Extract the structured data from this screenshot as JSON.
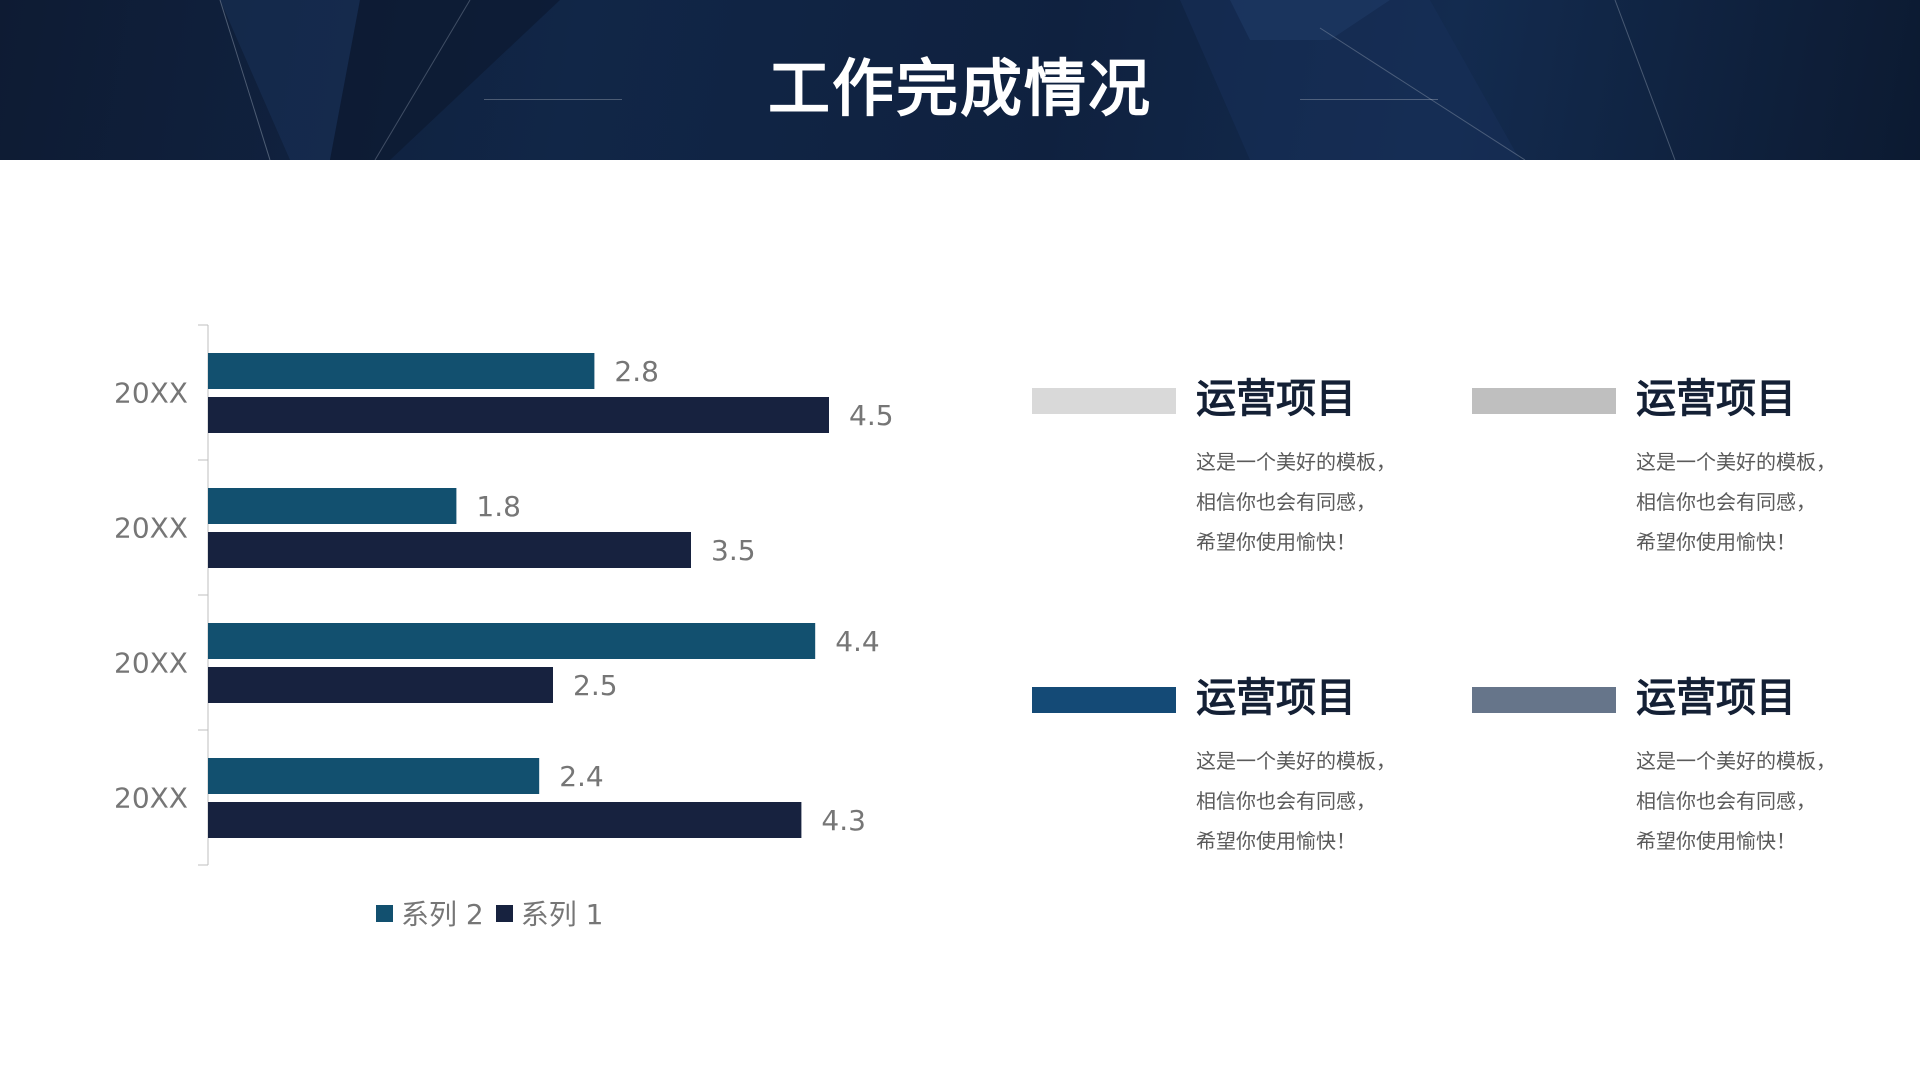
{
  "header": {
    "title": "工作完成情况"
  },
  "colors": {
    "series2": "#12506f",
    "series1": "#17223f",
    "axis": "#bfbfbf",
    "label": "#767676",
    "card_bar_1": "#d9d9d9",
    "card_bar_2": "#bfbfbf",
    "card_bar_3": "#144a76",
    "card_bar_4": "#66758a"
  },
  "chart_data": {
    "type": "bar",
    "orientation": "horizontal",
    "categories": [
      "20XX",
      "20XX",
      "20XX",
      "20XX"
    ],
    "series": [
      {
        "name": "系列 2",
        "values": [
          2.8,
          1.8,
          4.4,
          2.4
        ]
      },
      {
        "name": "系列 1",
        "values": [
          4.5,
          3.5,
          2.5,
          4.3
        ]
      }
    ],
    "xlim": [
      0,
      5
    ],
    "data_labels": true,
    "gridlines": false,
    "legend_position": "bottom"
  },
  "legend": {
    "items": [
      {
        "label": "系列 2"
      },
      {
        "label": "系列 1"
      }
    ]
  },
  "cards": [
    {
      "title": "运营项目",
      "lines": [
        "这是一个美好的模板，",
        "相信你也会有同感，",
        "希望你使用愉快！"
      ]
    },
    {
      "title": "运营项目",
      "lines": [
        "这是一个美好的模板，",
        "相信你也会有同感，",
        "希望你使用愉快！"
      ]
    },
    {
      "title": "运营项目",
      "lines": [
        "这是一个美好的模板，",
        "相信你也会有同感，",
        "希望你使用愉快！"
      ]
    },
    {
      "title": "运营项目",
      "lines": [
        "这是一个美好的模板，",
        "相信你也会有同感，",
        "希望你使用愉快！"
      ]
    }
  ]
}
